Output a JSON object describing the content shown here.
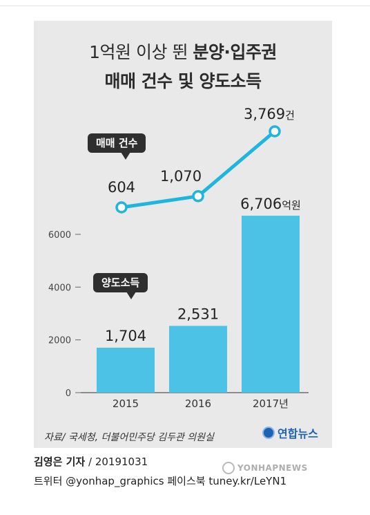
{
  "title": {
    "line1_light": "1억원 이상 뛴 ",
    "line1_bold": "분양·입주권",
    "line2": "매매 건수 및 양도소득"
  },
  "callouts": {
    "count": "매매 건수",
    "income": "양도소득"
  },
  "chart_data": [
    {
      "type": "line",
      "series": [
        {
          "name": "매매 건수",
          "values": [
            604,
            1070,
            3769
          ],
          "labels": [
            "604",
            "1,070",
            "3,769"
          ],
          "unit_suffix": "건",
          "color": "#1fb5dc"
        }
      ],
      "categories": [
        "2015",
        "2016",
        "2017년"
      ]
    },
    {
      "type": "bar",
      "categories": [
        "2015",
        "2016",
        "2017년"
      ],
      "series": [
        {
          "name": "양도소득",
          "values": [
            1704,
            2531,
            6706
          ],
          "labels": [
            "1,704",
            "2,531",
            "6,706"
          ],
          "unit_suffix": "억원",
          "color": "#4cc3e6"
        }
      ],
      "yticks": [
        0,
        2000,
        4000,
        6000
      ],
      "ylim": [
        0,
        6706
      ]
    }
  ],
  "source": "자료/ 국세청, 더불어민주당 김두관 의원실",
  "logo": "연합뉴스",
  "byline": {
    "name": "김영은 기자",
    "date": " / 20191031"
  },
  "social": "트위터 @yonhap_graphics  페이스북 tuney.kr/LeYN1",
  "watermark": "YONHAPNEWS"
}
